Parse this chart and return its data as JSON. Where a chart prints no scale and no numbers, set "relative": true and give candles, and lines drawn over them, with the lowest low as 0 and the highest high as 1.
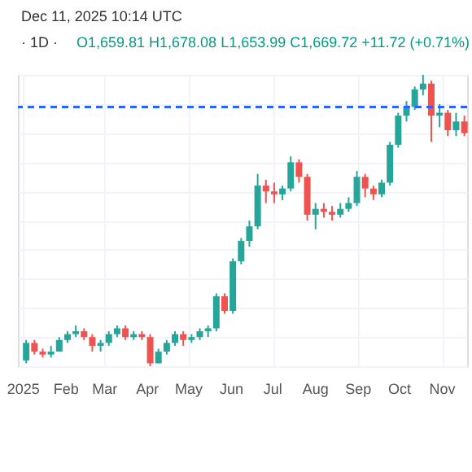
{
  "chart_data": {
    "type": "candlestick",
    "relative": true,
    "grid": true,
    "tick_labels": "x",
    "annotations": [
      "Dec 11, 2025 10:14 UTC",
      "· 1D ·",
      "O1,659.81 H1,678.08 L1,653.99 C1,669.72 +11.72 (+0.71%)"
    ],
    "x": [
      "2025-01-03",
      "2025-01-09",
      "2025-01-15",
      "2025-01-21",
      "2025-01-27",
      "2025-02-02",
      "2025-02-08",
      "2025-02-14",
      "2025-02-20",
      "2025-02-26",
      "2025-03-04",
      "2025-03-10",
      "2025-03-16",
      "2025-03-22",
      "2025-03-28",
      "2025-04-03",
      "2025-04-09",
      "2025-04-15",
      "2025-04-21",
      "2025-04-27",
      "2025-05-03",
      "2025-05-09",
      "2025-05-15",
      "2025-05-21",
      "2025-05-27",
      "2025-06-02",
      "2025-06-08",
      "2025-06-14",
      "2025-06-20",
      "2025-06-26",
      "2025-07-02",
      "2025-07-08",
      "2025-07-14",
      "2025-07-20",
      "2025-07-26",
      "2025-08-01",
      "2025-08-07",
      "2025-08-13",
      "2025-08-19",
      "2025-08-25",
      "2025-08-31",
      "2025-09-06",
      "2025-09-12",
      "2025-09-18",
      "2025-09-24",
      "2025-09-30",
      "2025-10-06",
      "2025-10-12",
      "2025-10-18",
      "2025-10-24",
      "2025-10-30",
      "2025-11-05",
      "2025-11-11",
      "2025-11-17"
    ],
    "ohlc": [
      [
        0.02,
        0.09,
        0.01,
        0.08
      ],
      [
        0.08,
        0.09,
        0.04,
        0.05
      ],
      [
        0.05,
        0.06,
        0.03,
        0.04
      ],
      [
        0.04,
        0.07,
        0.03,
        0.05
      ],
      [
        0.05,
        0.1,
        0.05,
        0.09
      ],
      [
        0.09,
        0.12,
        0.08,
        0.11
      ],
      [
        0.11,
        0.14,
        0.1,
        0.12
      ],
      [
        0.12,
        0.13,
        0.09,
        0.1
      ],
      [
        0.1,
        0.11,
        0.05,
        0.07
      ],
      [
        0.07,
        0.09,
        0.05,
        0.08
      ],
      [
        0.08,
        0.12,
        0.07,
        0.11
      ],
      [
        0.11,
        0.14,
        0.1,
        0.13
      ],
      [
        0.13,
        0.14,
        0.09,
        0.1
      ],
      [
        0.1,
        0.12,
        0.09,
        0.11
      ],
      [
        0.11,
        0.12,
        0.09,
        0.1
      ],
      [
        0.1,
        0.11,
        0,
        0.01
      ],
      [
        0.01,
        0.06,
        0.01,
        0.05
      ],
      [
        0.05,
        0.09,
        0.04,
        0.08
      ],
      [
        0.08,
        0.12,
        0.07,
        0.11
      ],
      [
        0.11,
        0.12,
        0.07,
        0.09
      ],
      [
        0.09,
        0.11,
        0.08,
        0.1
      ],
      [
        0.1,
        0.13,
        0.09,
        0.12
      ],
      [
        0.12,
        0.14,
        0.1,
        0.13
      ],
      [
        0.13,
        0.25,
        0.12,
        0.24
      ],
      [
        0.24,
        0.25,
        0.18,
        0.19
      ],
      [
        0.19,
        0.37,
        0.18,
        0.36
      ],
      [
        0.36,
        0.44,
        0.35,
        0.43
      ],
      [
        0.43,
        0.5,
        0.41,
        0.48
      ],
      [
        0.48,
        0.66,
        0.47,
        0.62
      ],
      [
        0.62,
        0.64,
        0.56,
        0.6
      ],
      [
        0.6,
        0.63,
        0.56,
        0.59
      ],
      [
        0.59,
        0.62,
        0.57,
        0.61
      ],
      [
        0.61,
        0.72,
        0.6,
        0.7
      ],
      [
        0.7,
        0.71,
        0.63,
        0.65
      ],
      [
        0.65,
        0.66,
        0.5,
        0.52
      ],
      [
        0.52,
        0.56,
        0.47,
        0.54
      ],
      [
        0.54,
        0.56,
        0.51,
        0.53
      ],
      [
        0.53,
        0.55,
        0.5,
        0.52
      ],
      [
        0.52,
        0.56,
        0.51,
        0.54
      ],
      [
        0.54,
        0.58,
        0.53,
        0.56
      ],
      [
        0.56,
        0.67,
        0.55,
        0.65
      ],
      [
        0.65,
        0.66,
        0.58,
        0.61
      ],
      [
        0.61,
        0.62,
        0.57,
        0.59
      ],
      [
        0.59,
        0.64,
        0.58,
        0.63
      ],
      [
        0.63,
        0.77,
        0.62,
        0.76
      ],
      [
        0.76,
        0.87,
        0.75,
        0.86
      ],
      [
        0.86,
        0.91,
        0.84,
        0.89
      ],
      [
        0.89,
        0.96,
        0.88,
        0.95
      ],
      [
        0.95,
        1,
        0.93,
        0.97
      ],
      [
        0.97,
        0.98,
        0.77,
        0.86
      ],
      [
        0.86,
        0.9,
        0.82,
        0.87
      ],
      [
        0.87,
        0.88,
        0.79,
        0.81
      ],
      [
        0.81,
        0.87,
        0.79,
        0.84
      ],
      [
        0.84,
        0.86,
        0.79,
        0.8
      ]
    ],
    "xlim": [
      "2024-12-28",
      "2025-11-19"
    ],
    "xticks": [
      {
        "value": "2025-01-01",
        "label": "2025"
      },
      {
        "value": "2025-02-01",
        "label": "Feb"
      },
      {
        "value": "2025-03-01",
        "label": "Mar"
      },
      {
        "value": "2025-04-01",
        "label": "Apr"
      },
      {
        "value": "2025-05-01",
        "label": "May"
      },
      {
        "value": "2025-06-01",
        "label": "Jun"
      },
      {
        "value": "2025-07-01",
        "label": "Jul"
      },
      {
        "value": "2025-08-01",
        "label": "Aug"
      },
      {
        "value": "2025-09-01",
        "label": "Sep"
      },
      {
        "value": "2025-10-01",
        "label": "Oct"
      },
      {
        "value": "2025-11-01",
        "label": "Nov"
      }
    ],
    "ref_lines": [
      {
        "axis": "y",
        "value": 0.89,
        "label": null,
        "color": "#2962ff",
        "line_style": "dashed"
      }
    ]
  }
}
